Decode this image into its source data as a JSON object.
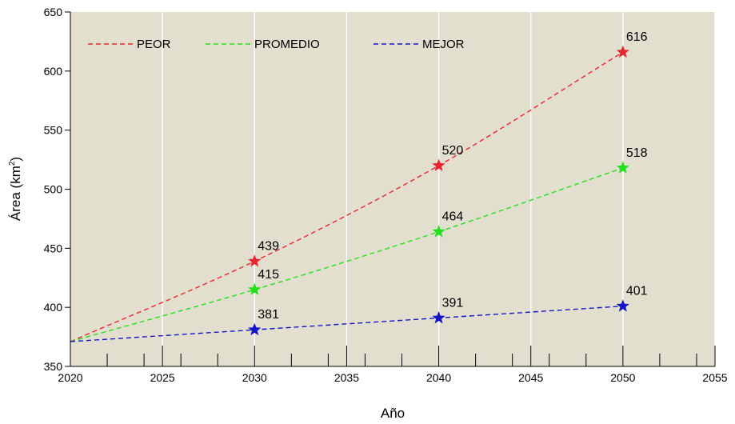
{
  "chart_data": {
    "type": "line",
    "title": "",
    "xlabel": "Año",
    "ylabel_main": "Área (km",
    "ylabel_sup": "2",
    "ylabel_close": ")",
    "xlim": [
      2020,
      2055
    ],
    "ylim": [
      350,
      650
    ],
    "xticks": [
      2020,
      2025,
      2030,
      2035,
      2040,
      2045,
      2050,
      2055
    ],
    "yticks": [
      350,
      400,
      450,
      500,
      550,
      600,
      650
    ],
    "grid": "vertical",
    "legend_position": "top",
    "start_point": {
      "x": 2020,
      "y": 371
    },
    "series": [
      {
        "name": "PEOR",
        "color": "#e8262f",
        "points": [
          {
            "x": 2030,
            "y": 439
          },
          {
            "x": 2040,
            "y": 520
          },
          {
            "x": 2050,
            "y": 616
          }
        ],
        "labels": [
          "439",
          "520",
          "616"
        ]
      },
      {
        "name": "PROMEDIO",
        "color": "#22e01c",
        "points": [
          {
            "x": 2030,
            "y": 415
          },
          {
            "x": 2040,
            "y": 464
          },
          {
            "x": 2050,
            "y": 518
          }
        ],
        "labels": [
          "415",
          "464",
          "518"
        ]
      },
      {
        "name": "MEJOR",
        "color": "#1515c8",
        "points": [
          {
            "x": 2030,
            "y": 381
          },
          {
            "x": 2040,
            "y": 391
          },
          {
            "x": 2050,
            "y": 401
          }
        ],
        "labels": [
          "381",
          "391",
          "401"
        ]
      }
    ],
    "colors": {
      "plot_background": "#e3dfcf",
      "grid": "#ffffff",
      "axis": "#000000"
    }
  }
}
